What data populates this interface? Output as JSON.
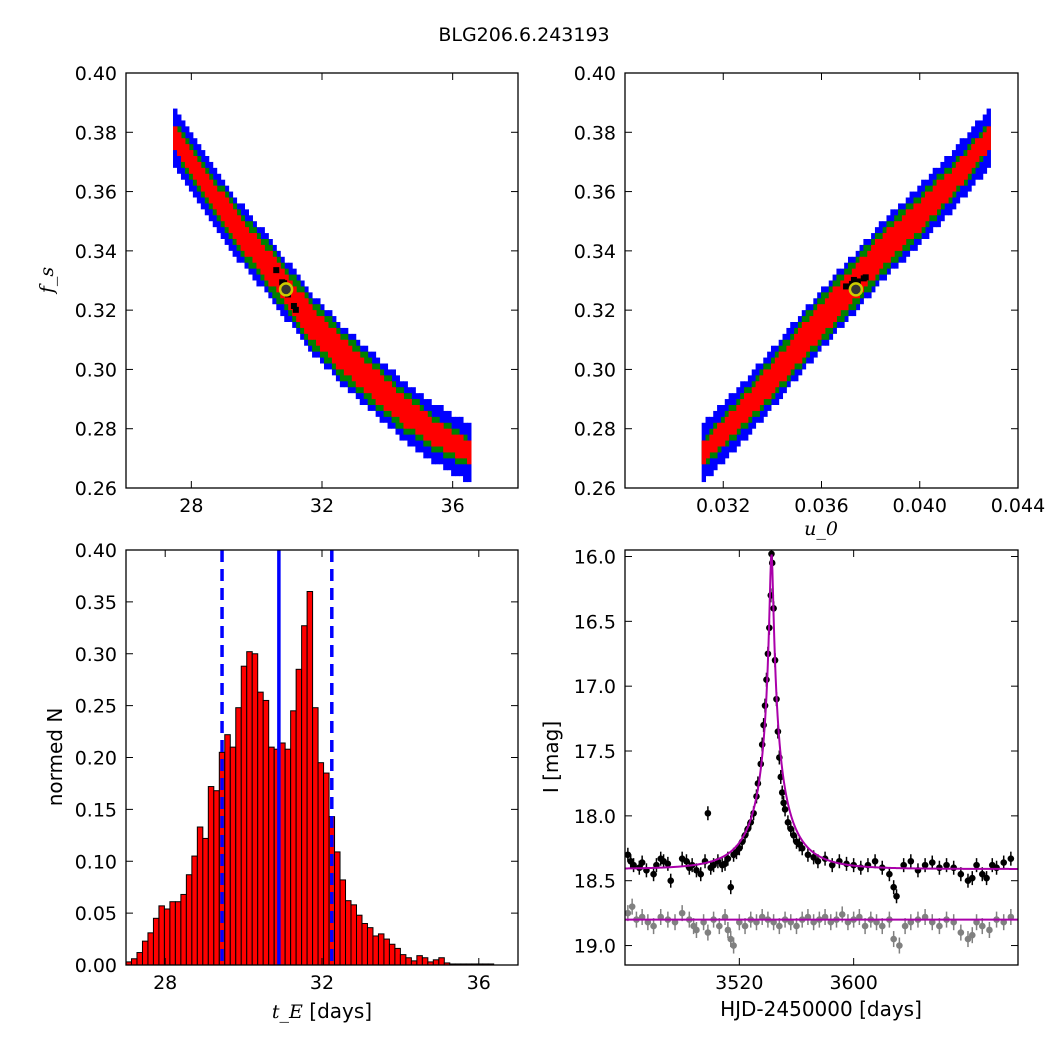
{
  "figure": {
    "title": "BLG206.6.243193"
  },
  "colors": {
    "blue": "#0000ff",
    "green": "#008000",
    "red": "#ff0000",
    "black": "#000000",
    "marker_fill": "#333333",
    "marker_ring": "#cccc00",
    "hist_bar": "#ff0000",
    "model_line": "#aa00aa",
    "secondary_points": "#808080"
  },
  "chart_data": [
    {
      "type": "heatmap",
      "panel": "top-left",
      "xlabel": "",
      "ylabel": "f_s",
      "xlim": [
        26,
        38
      ],
      "ylim": [
        0.26,
        0.4
      ],
      "xticks": [
        "28",
        "32",
        "36"
      ],
      "xtick_values": [
        28,
        32,
        36
      ],
      "yticks": [
        "0.26",
        "0.28",
        "0.30",
        "0.32",
        "0.34",
        "0.36",
        "0.38",
        "0.40"
      ],
      "ytick_values": [
        0.26,
        0.28,
        0.3,
        0.32,
        0.34,
        0.36,
        0.38,
        0.4
      ],
      "region_ridge": [
        [
          27.5,
          0.378
        ],
        [
          28.5,
          0.362
        ],
        [
          29.5,
          0.346
        ],
        [
          30.5,
          0.333
        ],
        [
          31.5,
          0.318
        ],
        [
          32.5,
          0.306
        ],
        [
          33.5,
          0.296
        ],
        [
          34.5,
          0.286
        ],
        [
          35.5,
          0.278
        ],
        [
          36.5,
          0.272
        ]
      ],
      "levels": [
        "blue",
        "green",
        "red",
        "black"
      ],
      "best_fit": [
        30.9,
        0.327
      ]
    },
    {
      "type": "heatmap",
      "panel": "top-right",
      "xlabel": "u_0",
      "ylabel": "",
      "xlim": [
        0.028,
        0.044
      ],
      "ylim": [
        0.26,
        0.4
      ],
      "xticks": [
        "0.032",
        "0.036",
        "0.040",
        "0.044"
      ],
      "xtick_values": [
        0.032,
        0.036,
        0.04,
        0.044
      ],
      "yticks": [
        "0.26",
        "0.28",
        "0.30",
        "0.32",
        "0.34",
        "0.36",
        "0.38",
        "0.40"
      ],
      "ytick_values": [
        0.26,
        0.28,
        0.3,
        0.32,
        0.34,
        0.36,
        0.38,
        0.4
      ],
      "region_ridge": [
        [
          0.0312,
          0.272
        ],
        [
          0.0325,
          0.283
        ],
        [
          0.034,
          0.297
        ],
        [
          0.0355,
          0.312
        ],
        [
          0.037,
          0.326
        ],
        [
          0.0385,
          0.34
        ],
        [
          0.04,
          0.352
        ],
        [
          0.0415,
          0.365
        ],
        [
          0.0428,
          0.378
        ]
      ],
      "levels": [
        "blue",
        "green",
        "red",
        "black"
      ],
      "best_fit": [
        0.0374,
        0.327
      ]
    },
    {
      "type": "bar",
      "panel": "bottom-left",
      "xlabel": "t_E",
      "xlabel_suffix": " [days]",
      "ylabel": "normed N",
      "xlim": [
        27,
        37
      ],
      "ylim": [
        0,
        0.4
      ],
      "xticks": [
        "28",
        "32",
        "36"
      ],
      "xtick_values": [
        28,
        32,
        36
      ],
      "yticks": [
        "0.00",
        "0.05",
        "0.10",
        "0.15",
        "0.20",
        "0.25",
        "0.30",
        "0.35",
        "0.40"
      ],
      "ytick_values": [
        0,
        0.05,
        0.1,
        0.15,
        0.2,
        0.25,
        0.3,
        0.35,
        0.4
      ],
      "bin_start": 27.0,
      "bin_width": 0.14,
      "values": [
        0.003,
        0.006,
        0.012,
        0.023,
        0.031,
        0.045,
        0.057,
        0.054,
        0.061,
        0.061,
        0.068,
        0.087,
        0.105,
        0.133,
        0.122,
        0.172,
        0.168,
        0.205,
        0.222,
        0.21,
        0.248,
        0.288,
        0.302,
        0.3,
        0.263,
        0.255,
        0.21,
        0.208,
        0.214,
        0.208,
        0.245,
        0.285,
        0.327,
        0.36,
        0.248,
        0.195,
        0.185,
        0.143,
        0.109,
        0.082,
        0.062,
        0.058,
        0.048,
        0.04,
        0.036,
        0.028,
        0.03,
        0.025,
        0.02,
        0.016,
        0.01,
        0.007,
        0.004,
        0.009,
        0.007,
        0.003,
        0.005,
        0.007,
        0.002,
        0.001,
        0.001,
        0.001,
        0.001,
        0.001,
        0.001,
        0.001,
        0.001
      ],
      "median": 30.9,
      "bounds": [
        29.45,
        32.25
      ]
    },
    {
      "type": "scatter",
      "panel": "bottom-right",
      "xlabel": "HJD-2450000 [days]",
      "ylabel": "I [mag]",
      "xlim": [
        3440,
        3715
      ],
      "ylim": [
        19.15,
        15.95
      ],
      "xticks": [
        "3520",
        "3600"
      ],
      "xtick_values": [
        3520,
        3600
      ],
      "yticks": [
        "16.0",
        "16.5",
        "17.0",
        "17.5",
        "18.0",
        "18.5",
        "19.0"
      ],
      "ytick_values": [
        16.0,
        16.5,
        17.0,
        17.5,
        18.0,
        18.5,
        19.0
      ],
      "model": {
        "t0": 3542.5,
        "u0": 0.0374,
        "tE": 30.9,
        "base": 18.41
      },
      "baseline_line": 18.8,
      "points_black": [
        [
          3442,
          18.3
        ],
        [
          3444,
          18.35
        ],
        [
          3446,
          18.38
        ],
        [
          3450,
          18.4
        ],
        [
          3452,
          18.36
        ],
        [
          3455,
          18.42
        ],
        [
          3460,
          18.45
        ],
        [
          3462,
          18.38
        ],
        [
          3465,
          18.33
        ],
        [
          3467,
          18.35
        ],
        [
          3470,
          18.37
        ],
        [
          3472,
          18.5
        ],
        [
          3480,
          18.33
        ],
        [
          3483,
          18.35
        ],
        [
          3485,
          18.4
        ],
        [
          3487,
          18.38
        ],
        [
          3490,
          18.42
        ],
        [
          3493,
          18.45
        ],
        [
          3496,
          18.35
        ],
        [
          3498,
          17.98
        ],
        [
          3500,
          18.4
        ],
        [
          3502,
          18.38
        ],
        [
          3505,
          18.35
        ],
        [
          3508,
          18.38
        ],
        [
          3510,
          18.37
        ],
        [
          3512,
          18.33
        ],
        [
          3514,
          18.55
        ],
        [
          3516,
          18.3
        ],
        [
          3518,
          18.28
        ],
        [
          3520,
          18.25
        ],
        [
          3522,
          18.2
        ],
        [
          3524,
          18.15
        ],
        [
          3526,
          18.1
        ],
        [
          3528,
          18.05
        ],
        [
          3530,
          17.98
        ],
        [
          3532,
          17.85
        ],
        [
          3533,
          17.75
        ],
        [
          3535,
          17.6
        ],
        [
          3536,
          17.45
        ],
        [
          3537,
          17.3
        ],
        [
          3538,
          17.15
        ],
        [
          3539,
          16.95
        ],
        [
          3540,
          16.75
        ],
        [
          3541,
          16.55
        ],
        [
          3542,
          16.3
        ],
        [
          3542.5,
          15.98
        ],
        [
          3543,
          16.05
        ],
        [
          3544,
          16.4
        ],
        [
          3545,
          16.8
        ],
        [
          3546,
          17.1
        ],
        [
          3547,
          17.35
        ],
        [
          3548,
          17.55
        ],
        [
          3549,
          17.7
        ],
        [
          3550,
          17.82
        ],
        [
          3551,
          17.9
        ],
        [
          3552,
          17.95
        ],
        [
          3554,
          18.05
        ],
        [
          3556,
          18.1
        ],
        [
          3558,
          18.15
        ],
        [
          3560,
          18.2
        ],
        [
          3562,
          18.22
        ],
        [
          3564,
          18.25
        ],
        [
          3568,
          18.3
        ],
        [
          3572,
          18.32
        ],
        [
          3575,
          18.35
        ],
        [
          3580,
          18.33
        ],
        [
          3585,
          18.38
        ],
        [
          3590,
          18.35
        ],
        [
          3595,
          18.37
        ],
        [
          3600,
          18.38
        ],
        [
          3605,
          18.4
        ],
        [
          3610,
          18.38
        ],
        [
          3615,
          18.35
        ],
        [
          3620,
          18.4
        ],
        [
          3625,
          18.45
        ],
        [
          3628,
          18.55
        ],
        [
          3630,
          18.62
        ],
        [
          3635,
          18.38
        ],
        [
          3640,
          18.35
        ],
        [
          3645,
          18.42
        ],
        [
          3650,
          18.38
        ],
        [
          3655,
          18.36
        ],
        [
          3660,
          18.4
        ],
        [
          3665,
          18.38
        ],
        [
          3670,
          18.4
        ],
        [
          3675,
          18.45
        ],
        [
          3680,
          18.5
        ],
        [
          3683,
          18.48
        ],
        [
          3686,
          18.38
        ],
        [
          3690,
          18.45
        ],
        [
          3693,
          18.48
        ],
        [
          3697,
          18.38
        ],
        [
          3700,
          18.4
        ],
        [
          3705,
          18.36
        ],
        [
          3710,
          18.33
        ]
      ],
      "points_gray": [
        [
          3442,
          18.75
        ],
        [
          3445,
          18.7
        ],
        [
          3448,
          18.8
        ],
        [
          3452,
          18.78
        ],
        [
          3456,
          18.82
        ],
        [
          3460,
          18.85
        ],
        [
          3465,
          18.78
        ],
        [
          3470,
          18.8
        ],
        [
          3475,
          18.82
        ],
        [
          3480,
          18.75
        ],
        [
          3485,
          18.8
        ],
        [
          3488,
          18.85
        ],
        [
          3490,
          18.88
        ],
        [
          3495,
          18.82
        ],
        [
          3498,
          18.9
        ],
        [
          3502,
          18.8
        ],
        [
          3506,
          18.85
        ],
        [
          3510,
          18.78
        ],
        [
          3512,
          18.88
        ],
        [
          3514,
          18.95
        ],
        [
          3516,
          19.0
        ],
        [
          3520,
          18.82
        ],
        [
          3524,
          18.85
        ],
        [
          3528,
          18.8
        ],
        [
          3532,
          18.82
        ],
        [
          3536,
          18.78
        ],
        [
          3540,
          18.8
        ],
        [
          3544,
          18.82
        ],
        [
          3548,
          18.85
        ],
        [
          3552,
          18.8
        ],
        [
          3556,
          18.82
        ],
        [
          3560,
          18.85
        ],
        [
          3564,
          18.8
        ],
        [
          3568,
          18.78
        ],
        [
          3572,
          18.82
        ],
        [
          3576,
          18.8
        ],
        [
          3580,
          18.78
        ],
        [
          3584,
          18.82
        ],
        [
          3588,
          18.8
        ],
        [
          3592,
          18.76
        ],
        [
          3596,
          18.82
        ],
        [
          3600,
          18.8
        ],
        [
          3604,
          18.78
        ],
        [
          3608,
          18.85
        ],
        [
          3612,
          18.8
        ],
        [
          3616,
          18.82
        ],
        [
          3620,
          18.85
        ],
        [
          3625,
          18.8
        ],
        [
          3628,
          18.95
        ],
        [
          3632,
          19.0
        ],
        [
          3636,
          18.85
        ],
        [
          3640,
          18.82
        ],
        [
          3645,
          18.8
        ],
        [
          3650,
          18.78
        ],
        [
          3655,
          18.82
        ],
        [
          3660,
          18.85
        ],
        [
          3665,
          18.8
        ],
        [
          3670,
          18.82
        ],
        [
          3675,
          18.9
        ],
        [
          3680,
          18.95
        ],
        [
          3683,
          18.92
        ],
        [
          3686,
          18.82
        ],
        [
          3690,
          18.85
        ],
        [
          3695,
          18.88
        ],
        [
          3700,
          18.8
        ],
        [
          3705,
          18.82
        ],
        [
          3710,
          18.78
        ]
      ]
    }
  ]
}
